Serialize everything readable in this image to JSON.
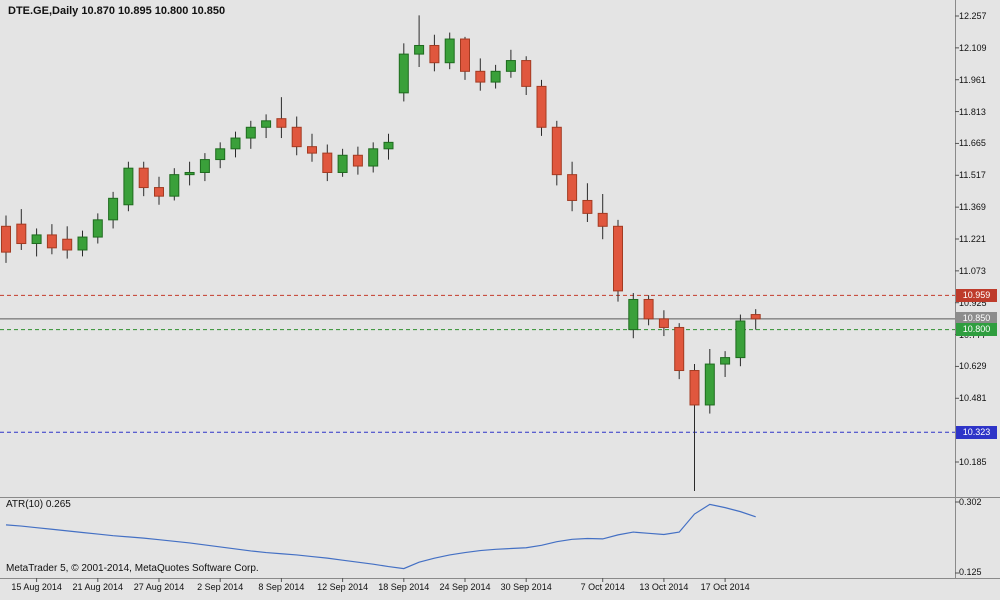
{
  "header": {
    "title": "DTE.GE,Daily 10.870 10.895 10.800 10.850",
    "symbol": "DTE.GE",
    "timeframe": "Daily",
    "open": "10.870",
    "high": "10.895",
    "low": "10.800",
    "close": "10.850"
  },
  "price_axis": {
    "ticks": [
      "12.257",
      "12.109",
      "11.961",
      "11.813",
      "11.665",
      "11.517",
      "11.369",
      "11.221",
      "11.073",
      "10.925",
      "10.777",
      "10.629",
      "10.481",
      "10.185"
    ],
    "badges": [
      {
        "label": "10.959",
        "value": 10.959,
        "bg": "#BE3B2B",
        "line_color": "#C43B2B",
        "line_style": "dashed"
      },
      {
        "label": "10.850",
        "value": 10.85,
        "bg": "#8C8C8C",
        "line_color": "#5A5A5A",
        "line_style": "solid"
      },
      {
        "label": "10.800",
        "value": 10.8,
        "bg": "#2F9E3F",
        "line_color": "#2F8F2F",
        "line_style": "dashed"
      },
      {
        "label": "10.323",
        "value": 10.323,
        "bg": "#2E34C8",
        "line_color": "#2E34C8",
        "line_style": "dashed"
      }
    ]
  },
  "time_axis": {
    "labels": [
      {
        "text": "15 Aug 2014",
        "index": 2
      },
      {
        "text": "21 Aug 2014",
        "index": 6
      },
      {
        "text": "27 Aug 2014",
        "index": 10
      },
      {
        "text": "2 Sep 2014",
        "index": 14
      },
      {
        "text": "8 Sep 2014",
        "index": 18
      },
      {
        "text": "12 Sep 2014",
        "index": 22
      },
      {
        "text": "18 Sep 2014",
        "index": 26
      },
      {
        "text": "24 Sep 2014",
        "index": 30
      },
      {
        "text": "30 Sep 2014",
        "index": 34
      },
      {
        "text": "7 Oct 2014",
        "index": 39
      },
      {
        "text": "13 Oct 2014",
        "index": 43
      },
      {
        "text": "17 Oct 2014",
        "index": 47
      }
    ]
  },
  "indicator": {
    "label": "ATR(10) 0.265",
    "name": "ATR",
    "period": "10",
    "current": "0.265",
    "axis_max": "0.302",
    "axis_min": "0.125",
    "line_color": "#4470C4",
    "values": [
      0.245,
      0.242,
      0.238,
      0.234,
      0.23,
      0.226,
      0.222,
      0.218,
      0.215,
      0.212,
      0.208,
      0.204,
      0.2,
      0.195,
      0.19,
      0.185,
      0.18,
      0.176,
      0.173,
      0.17,
      0.166,
      0.162,
      0.157,
      0.152,
      0.147,
      0.141,
      0.136,
      0.152,
      0.162,
      0.17,
      0.176,
      0.181,
      0.184,
      0.186,
      0.188,
      0.194,
      0.203,
      0.209,
      0.211,
      0.21,
      0.22,
      0.227,
      0.224,
      0.221,
      0.227,
      0.272,
      0.296,
      0.288,
      0.278,
      0.265
    ]
  },
  "footer": {
    "text": "MetaTrader 5, © 2001-2014, MetaQuotes Software Corp."
  },
  "colors": {
    "background": "#E4E4E4",
    "bull": "#3AA03A",
    "bull_border": "#1F6B1F",
    "bear": "#E0573E",
    "bear_border": "#A33B22",
    "wick": "#2A2A2A",
    "separator": "#8A8A8A",
    "tick": "#555555"
  },
  "chart_data": {
    "type": "candlestick",
    "title": "DTE.GE Daily",
    "columns": [
      "date",
      "open",
      "high",
      "low",
      "close"
    ],
    "y_axis_visible_range": [
      10.05,
      12.33
    ],
    "levels": [
      {
        "value": 10.959,
        "style": "red-dashed"
      },
      {
        "value": 10.85,
        "style": "gray-solid-current-price"
      },
      {
        "value": 10.8,
        "style": "green-dashed"
      },
      {
        "value": 10.323,
        "style": "blue-dashed"
      }
    ],
    "candles": [
      [
        "13 Aug 2014",
        11.28,
        11.33,
        11.11,
        11.16
      ],
      [
        "14 Aug 2014",
        11.29,
        11.36,
        11.17,
        11.2
      ],
      [
        "15 Aug 2014",
        11.2,
        11.27,
        11.14,
        11.24
      ],
      [
        "18 Aug 2014",
        11.24,
        11.29,
        11.15,
        11.18
      ],
      [
        "19 Aug 2014",
        11.22,
        11.28,
        11.13,
        11.17
      ],
      [
        "20 Aug 2014",
        11.17,
        11.26,
        11.14,
        11.23
      ],
      [
        "21 Aug 2014",
        11.23,
        11.34,
        11.2,
        11.31
      ],
      [
        "22 Aug 2014",
        11.31,
        11.44,
        11.27,
        11.41
      ],
      [
        "25 Aug 2014",
        11.38,
        11.58,
        11.35,
        11.55
      ],
      [
        "26 Aug 2014",
        11.55,
        11.58,
        11.42,
        11.46
      ],
      [
        "27 Aug 2014",
        11.46,
        11.51,
        11.38,
        11.42
      ],
      [
        "28 Aug 2014",
        11.42,
        11.55,
        11.4,
        11.52
      ],
      [
        "29 Aug 2014",
        11.52,
        11.58,
        11.47,
        11.53
      ],
      [
        "1 Sep 2014",
        11.53,
        11.62,
        11.49,
        11.59
      ],
      [
        "2 Sep 2014",
        11.59,
        11.67,
        11.55,
        11.64
      ],
      [
        "3 Sep 2014",
        11.64,
        11.72,
        11.6,
        11.69
      ],
      [
        "4 Sep 2014",
        11.69,
        11.77,
        11.64,
        11.74
      ],
      [
        "5 Sep 2014",
        11.74,
        11.8,
        11.69,
        11.77
      ],
      [
        "8 Sep 2014",
        11.78,
        11.88,
        11.69,
        11.74
      ],
      [
        "9 Sep 2014",
        11.74,
        11.79,
        11.61,
        11.65
      ],
      [
        "10 Sep 2014",
        11.65,
        11.71,
        11.58,
        11.62
      ],
      [
        "11 Sep 2014",
        11.62,
        11.66,
        11.49,
        11.53
      ],
      [
        "12 Sep 2014",
        11.53,
        11.64,
        11.51,
        11.61
      ],
      [
        "15 Sep 2014",
        11.61,
        11.65,
        11.52,
        11.56
      ],
      [
        "16 Sep 2014",
        11.56,
        11.67,
        11.53,
        11.64
      ],
      [
        "17 Sep 2014",
        11.64,
        11.71,
        11.59,
        11.67
      ],
      [
        "18 Sep 2014",
        11.9,
        12.13,
        11.86,
        12.08
      ],
      [
        "19 Sep 2014",
        12.08,
        12.26,
        12.02,
        12.12
      ],
      [
        "22 Sep 2014",
        12.12,
        12.17,
        12.0,
        12.04
      ],
      [
        "23 Sep 2014",
        12.04,
        12.18,
        12.01,
        12.15
      ],
      [
        "24 Sep 2014",
        12.15,
        12.16,
        11.96,
        12.0
      ],
      [
        "25 Sep 2014",
        12.0,
        12.06,
        11.91,
        11.95
      ],
      [
        "26 Sep 2014",
        11.95,
        12.03,
        11.92,
        12.0
      ],
      [
        "29 Sep 2014",
        12.0,
        12.1,
        11.97,
        12.05
      ],
      [
        "30 Sep 2014",
        12.05,
        12.07,
        11.89,
        11.93
      ],
      [
        "1 Oct 2014",
        11.93,
        11.96,
        11.7,
        11.74
      ],
      [
        "2 Oct 2014",
        11.74,
        11.77,
        11.47,
        11.52
      ],
      [
        "3 Oct 2014",
        11.52,
        11.58,
        11.35,
        11.4
      ],
      [
        "6 Oct 2014",
        11.4,
        11.48,
        11.3,
        11.34
      ],
      [
        "7 Oct 2014",
        11.34,
        11.43,
        11.22,
        11.28
      ],
      [
        "8 Oct 2014",
        11.28,
        11.31,
        10.93,
        10.98
      ],
      [
        "9 Oct 2014",
        10.8,
        10.97,
        10.76,
        10.94
      ],
      [
        "10 Oct 2014",
        10.94,
        10.96,
        10.82,
        10.85
      ],
      [
        "13 Oct 2014",
        10.85,
        10.89,
        10.77,
        10.81
      ],
      [
        "14 Oct 2014",
        10.81,
        10.83,
        10.57,
        10.61
      ],
      [
        "15 Oct 2014",
        10.61,
        10.64,
        10.05,
        10.45
      ],
      [
        "16 Oct 2014",
        10.45,
        10.71,
        10.41,
        10.64
      ],
      [
        "17 Oct 2014",
        10.64,
        10.7,
        10.58,
        10.67
      ],
      [
        "20 Oct 2014",
        10.67,
        10.87,
        10.63,
        10.84
      ],
      [
        "21 Oct 2014",
        10.87,
        10.895,
        10.8,
        10.85
      ]
    ]
  }
}
